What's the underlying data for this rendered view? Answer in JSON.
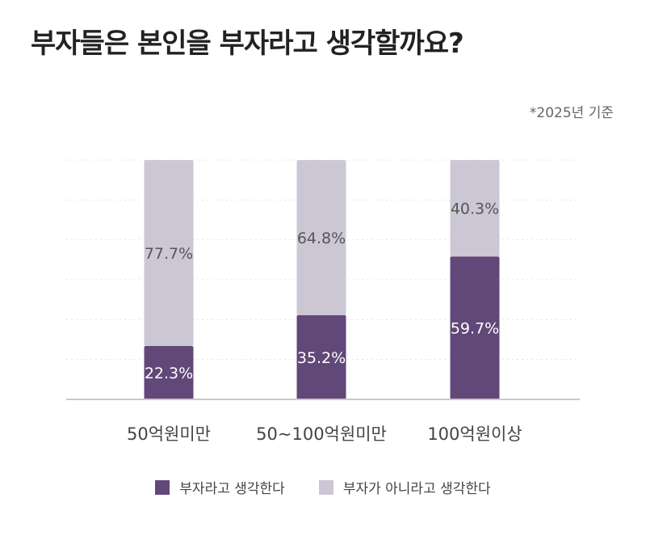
{
  "header": {
    "title": "부자들은 본인을 부자라고 생각할까요?",
    "note": "*2025년 기준"
  },
  "colors": {
    "series1": "#614878",
    "series2": "#ccc7d5",
    "axis": "#c9c9c9",
    "grid": "#e3e3e3"
  },
  "legend": [
    {
      "label": "부자라고 생각한다",
      "color": "#614878"
    },
    {
      "label": "부자가 아니라고 생각한다",
      "color": "#ccc7d5"
    }
  ],
  "chart_data": {
    "type": "bar",
    "stacked": true,
    "categories": [
      "50억원미만",
      "50~100억원미만",
      "100억원이상"
    ],
    "series": [
      {
        "name": "부자라고 생각한다",
        "values": [
          22.3,
          35.2,
          59.7
        ],
        "labels": [
          "22.3%",
          "35.2%",
          "59.7%"
        ]
      },
      {
        "name": "부자가 아니라고 생각한다",
        "values": [
          77.7,
          64.8,
          40.3
        ],
        "labels": [
          "77.7%",
          "64.8%",
          "40.3%"
        ]
      }
    ],
    "ylim": [
      0,
      100
    ],
    "grid": true,
    "legend_position": "bottom"
  }
}
